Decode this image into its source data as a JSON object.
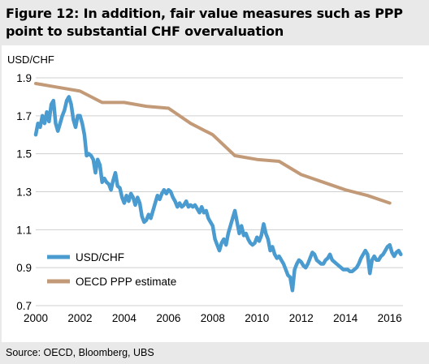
{
  "figure": {
    "title_line1": "Figure 12: In addition, fair value measures such as PPP",
    "title_line2": "point to substantial CHF overvaluation",
    "source": "Source:  OECD, Bloomberg, UBS"
  },
  "chart_data": {
    "type": "line",
    "ylabel": "USD/CHF",
    "xlabel": "",
    "xlim": [
      2000,
      2016.6
    ],
    "ylim": [
      0.7,
      1.9
    ],
    "x_ticks": [
      "2000",
      "2002",
      "2004",
      "2006",
      "2008",
      "2010",
      "2012",
      "2014",
      "2016"
    ],
    "y_ticks": [
      "0.7",
      "0.9",
      "1.1",
      "1.3",
      "1.5",
      "1.7",
      "1.9"
    ],
    "grid": "horizontal",
    "legend_position": "bottom-left",
    "series": [
      {
        "name": "USD/CHF",
        "color": "#4a9bd0",
        "points": [
          [
            2000.0,
            1.6
          ],
          [
            2000.1,
            1.66
          ],
          [
            2000.2,
            1.64
          ],
          [
            2000.3,
            1.7
          ],
          [
            2000.4,
            1.66
          ],
          [
            2000.5,
            1.72
          ],
          [
            2000.6,
            1.67
          ],
          [
            2000.7,
            1.76
          ],
          [
            2000.8,
            1.78
          ],
          [
            2000.9,
            1.66
          ],
          [
            2001.0,
            1.62
          ],
          [
            2001.1,
            1.66
          ],
          [
            2001.2,
            1.7
          ],
          [
            2001.3,
            1.73
          ],
          [
            2001.4,
            1.78
          ],
          [
            2001.5,
            1.8
          ],
          [
            2001.6,
            1.76
          ],
          [
            2001.7,
            1.68
          ],
          [
            2001.8,
            1.64
          ],
          [
            2001.9,
            1.7
          ],
          [
            2002.0,
            1.7
          ],
          [
            2002.1,
            1.66
          ],
          [
            2002.2,
            1.6
          ],
          [
            2002.3,
            1.49
          ],
          [
            2002.4,
            1.5
          ],
          [
            2002.5,
            1.49
          ],
          [
            2002.6,
            1.47
          ],
          [
            2002.7,
            1.4
          ],
          [
            2002.8,
            1.47
          ],
          [
            2002.9,
            1.44
          ],
          [
            2003.0,
            1.35
          ],
          [
            2003.1,
            1.37
          ],
          [
            2003.2,
            1.35
          ],
          [
            2003.3,
            1.34
          ],
          [
            2003.4,
            1.31
          ],
          [
            2003.5,
            1.36
          ],
          [
            2003.6,
            1.4
          ],
          [
            2003.7,
            1.33
          ],
          [
            2003.8,
            1.32
          ],
          [
            2003.9,
            1.27
          ],
          [
            2004.0,
            1.24
          ],
          [
            2004.1,
            1.28
          ],
          [
            2004.2,
            1.25
          ],
          [
            2004.3,
            1.29
          ],
          [
            2004.4,
            1.27
          ],
          [
            2004.5,
            1.23
          ],
          [
            2004.6,
            1.27
          ],
          [
            2004.7,
            1.24
          ],
          [
            2004.8,
            1.17
          ],
          [
            2004.9,
            1.14
          ],
          [
            2005.0,
            1.15
          ],
          [
            2005.1,
            1.18
          ],
          [
            2005.2,
            1.16
          ],
          [
            2005.3,
            1.2
          ],
          [
            2005.4,
            1.24
          ],
          [
            2005.5,
            1.28
          ],
          [
            2005.6,
            1.26
          ],
          [
            2005.7,
            1.29
          ],
          [
            2005.8,
            1.31
          ],
          [
            2005.9,
            1.29
          ],
          [
            2006.0,
            1.31
          ],
          [
            2006.1,
            1.3
          ],
          [
            2006.2,
            1.27
          ],
          [
            2006.3,
            1.25
          ],
          [
            2006.4,
            1.22
          ],
          [
            2006.5,
            1.24
          ],
          [
            2006.6,
            1.22
          ],
          [
            2006.7,
            1.23
          ],
          [
            2006.8,
            1.25
          ],
          [
            2006.9,
            1.22
          ],
          [
            2007.0,
            1.23
          ],
          [
            2007.1,
            1.22
          ],
          [
            2007.2,
            1.23
          ],
          [
            2007.3,
            1.21
          ],
          [
            2007.4,
            1.19
          ],
          [
            2007.5,
            1.22
          ],
          [
            2007.6,
            1.19
          ],
          [
            2007.7,
            1.2
          ],
          [
            2007.8,
            1.16
          ],
          [
            2007.9,
            1.14
          ],
          [
            2008.0,
            1.12
          ],
          [
            2008.1,
            1.05
          ],
          [
            2008.2,
            1.02
          ],
          [
            2008.3,
            0.99
          ],
          [
            2008.4,
            1.03
          ],
          [
            2008.5,
            1.05
          ],
          [
            2008.6,
            1.02
          ],
          [
            2008.7,
            1.08
          ],
          [
            2008.8,
            1.12
          ],
          [
            2008.9,
            1.16
          ],
          [
            2009.0,
            1.2
          ],
          [
            2009.1,
            1.14
          ],
          [
            2009.2,
            1.08
          ],
          [
            2009.3,
            1.12
          ],
          [
            2009.4,
            1.07
          ],
          [
            2009.5,
            1.08
          ],
          [
            2009.6,
            1.05
          ],
          [
            2009.7,
            1.03
          ],
          [
            2009.8,
            1.02
          ],
          [
            2009.9,
            1.03
          ],
          [
            2010.0,
            1.06
          ],
          [
            2010.1,
            1.04
          ],
          [
            2010.2,
            1.07
          ],
          [
            2010.3,
            1.13
          ],
          [
            2010.4,
            1.08
          ],
          [
            2010.5,
            1.05
          ],
          [
            2010.6,
            0.99
          ],
          [
            2010.7,
            1.01
          ],
          [
            2010.8,
            0.97
          ],
          [
            2010.9,
            0.95
          ],
          [
            2011.0,
            0.96
          ],
          [
            2011.1,
            0.94
          ],
          [
            2011.2,
            0.92
          ],
          [
            2011.3,
            0.89
          ],
          [
            2011.4,
            0.86
          ],
          [
            2011.5,
            0.85
          ],
          [
            2011.6,
            0.78
          ],
          [
            2011.7,
            0.89
          ],
          [
            2011.8,
            0.92
          ],
          [
            2011.9,
            0.94
          ],
          [
            2012.0,
            0.93
          ],
          [
            2012.1,
            0.91
          ],
          [
            2012.2,
            0.9
          ],
          [
            2012.3,
            0.92
          ],
          [
            2012.4,
            0.95
          ],
          [
            2012.5,
            0.98
          ],
          [
            2012.6,
            0.97
          ],
          [
            2012.7,
            0.94
          ],
          [
            2012.8,
            0.93
          ],
          [
            2012.9,
            0.92
          ],
          [
            2013.0,
            0.92
          ],
          [
            2013.1,
            0.94
          ],
          [
            2013.2,
            0.95
          ],
          [
            2013.3,
            0.97
          ],
          [
            2013.4,
            0.94
          ],
          [
            2013.5,
            0.93
          ],
          [
            2013.6,
            0.92
          ],
          [
            2013.7,
            0.91
          ],
          [
            2013.8,
            0.9
          ],
          [
            2013.9,
            0.89
          ],
          [
            2014.0,
            0.89
          ],
          [
            2014.1,
            0.89
          ],
          [
            2014.2,
            0.88
          ],
          [
            2014.3,
            0.88
          ],
          [
            2014.4,
            0.89
          ],
          [
            2014.5,
            0.9
          ],
          [
            2014.6,
            0.92
          ],
          [
            2014.7,
            0.95
          ],
          [
            2014.8,
            0.97
          ],
          [
            2014.9,
            0.99
          ],
          [
            2015.0,
            0.97
          ],
          [
            2015.1,
            0.87
          ],
          [
            2015.2,
            0.94
          ],
          [
            2015.3,
            0.96
          ],
          [
            2015.4,
            0.94
          ],
          [
            2015.5,
            0.94
          ],
          [
            2015.6,
            0.96
          ],
          [
            2015.7,
            0.97
          ],
          [
            2015.8,
            0.99
          ],
          [
            2015.9,
            1.01
          ],
          [
            2016.0,
            1.02
          ],
          [
            2016.1,
            0.98
          ],
          [
            2016.2,
            0.96
          ],
          [
            2016.3,
            0.98
          ],
          [
            2016.4,
            0.99
          ],
          [
            2016.5,
            0.97
          ]
        ]
      },
      {
        "name": "OECD PPP estimate",
        "color": "#c39a78",
        "points": [
          [
            2000,
            1.87
          ],
          [
            2001,
            1.85
          ],
          [
            2002,
            1.83
          ],
          [
            2003,
            1.77
          ],
          [
            2004,
            1.77
          ],
          [
            2005,
            1.75
          ],
          [
            2006,
            1.74
          ],
          [
            2007,
            1.66
          ],
          [
            2008,
            1.6
          ],
          [
            2009,
            1.49
          ],
          [
            2010,
            1.47
          ],
          [
            2011,
            1.46
          ],
          [
            2012,
            1.39
          ],
          [
            2013,
            1.35
          ],
          [
            2014,
            1.31
          ],
          [
            2015,
            1.28
          ],
          [
            2016,
            1.24
          ]
        ]
      }
    ]
  }
}
